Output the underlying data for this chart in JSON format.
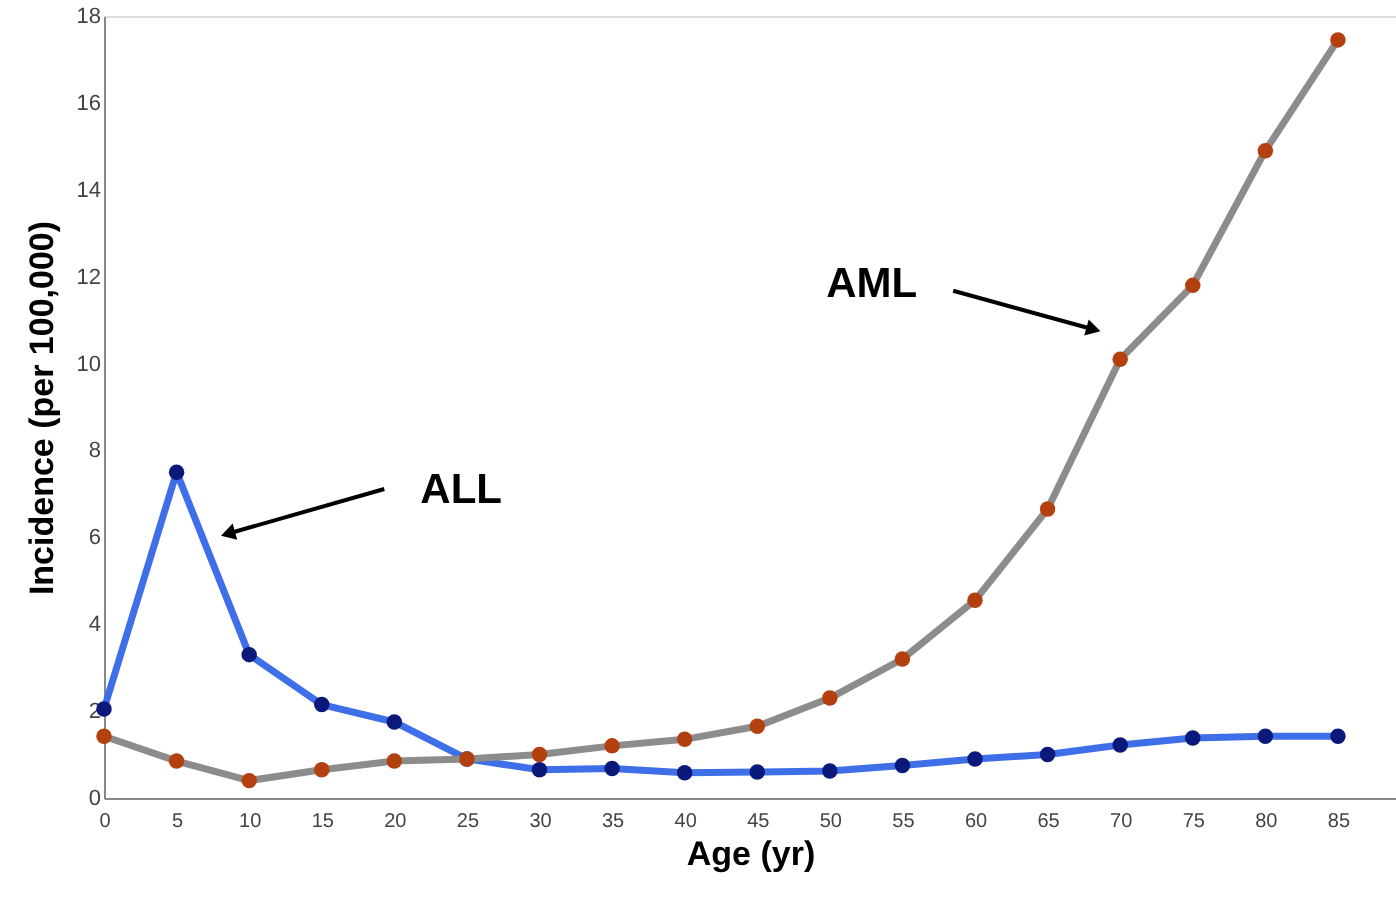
{
  "chart_data": {
    "type": "line",
    "xlabel": "Age (yr)",
    "ylabel": "Incidence (per 100,000)",
    "x": [
      0,
      5,
      10,
      15,
      20,
      25,
      30,
      35,
      40,
      45,
      50,
      55,
      60,
      65,
      70,
      75,
      80,
      85
    ],
    "series": [
      {
        "color": "#3f6fe8",
        "values": [
          2.05,
          7.5,
          3.3,
          2.15,
          1.75,
          0.9,
          0.65,
          0.68,
          0.58,
          0.6,
          0.62,
          0.75,
          0.9,
          1.0,
          1.22,
          1.38,
          1.42,
          1.42
        ]
      },
      {
        "color": "#8c8c8c",
        "values": [
          1.42,
          0.85,
          0.4,
          0.65,
          0.85,
          0.9,
          1.0,
          1.2,
          1.35,
          1.65,
          2.3,
          3.2,
          4.55,
          6.65,
          10.1,
          11.8,
          14.9,
          17.45
        ]
      }
    ],
    "annotations": [
      {
        "text": "ALL",
        "x": 8.7,
        "y": 6.1
      },
      {
        "text": "AML",
        "x": 68,
        "y": 10.8
      }
    ],
    "xlim": [
      0,
      89
    ],
    "xticks": [
      0,
      5,
      10,
      15,
      20,
      25,
      30,
      35,
      40,
      45,
      50,
      55,
      60,
      65,
      70,
      75,
      80,
      85
    ],
    "ylim": [
      0,
      18
    ],
    "yticks": [
      0,
      2,
      4,
      6,
      8,
      10,
      12,
      14,
      16,
      18
    ],
    "marker": "circle",
    "grid": false,
    "legend": false
  }
}
